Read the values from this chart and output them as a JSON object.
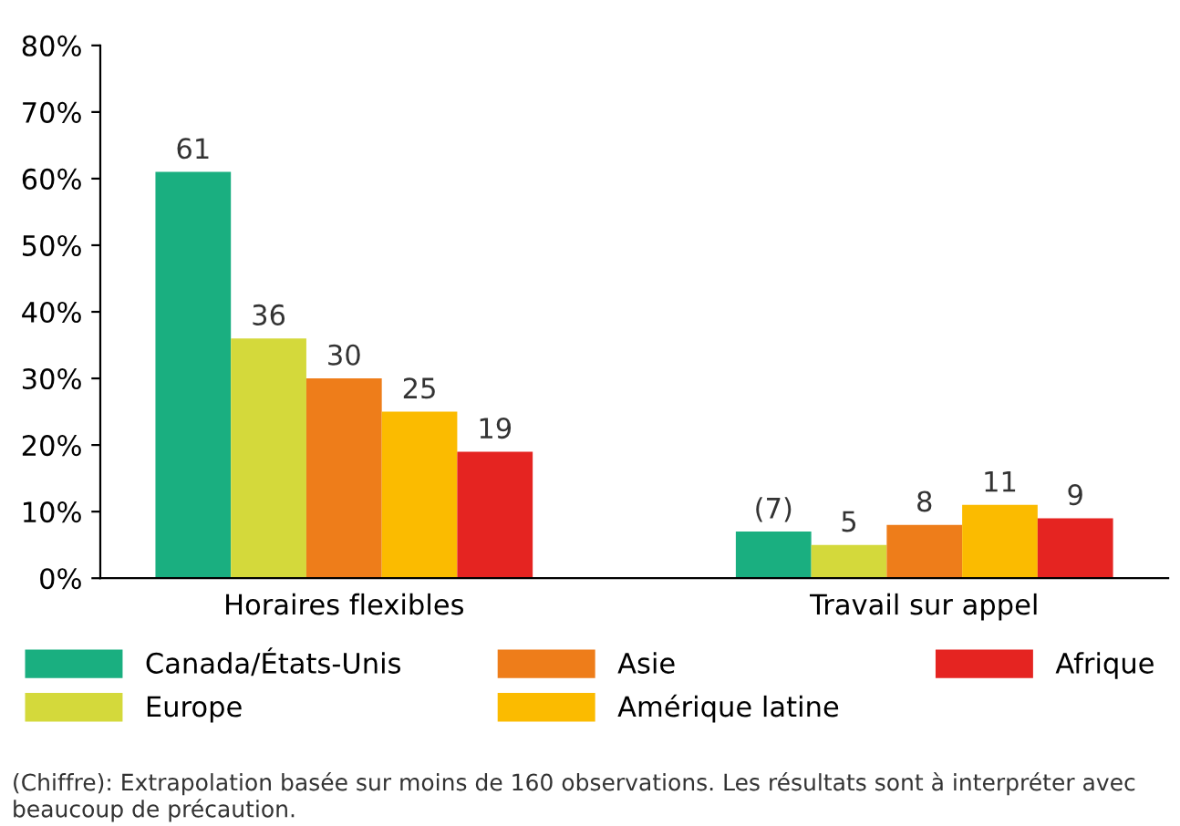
{
  "chart_data": {
    "type": "bar",
    "categories": [
      "Horaires flexibles",
      "Travail sur appel"
    ],
    "series": [
      {
        "name": "Canada/États-Unis",
        "color": "#1aaf80",
        "values": [
          61,
          7
        ],
        "value_labels": [
          "61",
          "(7)"
        ]
      },
      {
        "name": "Europe",
        "color": "#d4d93b",
        "values": [
          36,
          5
        ],
        "value_labels": [
          "36",
          "5"
        ]
      },
      {
        "name": "Asie",
        "color": "#ee7d1a",
        "values": [
          30,
          8
        ],
        "value_labels": [
          "30",
          "8"
        ]
      },
      {
        "name": "Amérique latine",
        "color": "#fbbb00",
        "values": [
          25,
          11
        ],
        "value_labels": [
          "25",
          "11"
        ]
      },
      {
        "name": "Afrique",
        "color": "#e52421",
        "values": [
          19,
          9
        ],
        "value_labels": [
          "19",
          "9"
        ]
      }
    ],
    "ylim": [
      0,
      80
    ],
    "yticks": [
      {
        "value": 0,
        "label": "0%"
      },
      {
        "value": 10,
        "label": "10%"
      },
      {
        "value": 20,
        "label": "20%"
      },
      {
        "value": 30,
        "label": "30%"
      },
      {
        "value": 40,
        "label": "40%"
      },
      {
        "value": 50,
        "label": "50%"
      },
      {
        "value": 60,
        "label": "60%"
      },
      {
        "value": 70,
        "label": "70%"
      },
      {
        "value": 80,
        "label": "80%"
      }
    ],
    "grid": false,
    "legend": "bottom",
    "annotations": [
      "(Chiffre): Extrapolation basée sur moins de 160 observations. Les résultats sont à interpréter avec beaucoup de précaution."
    ]
  }
}
